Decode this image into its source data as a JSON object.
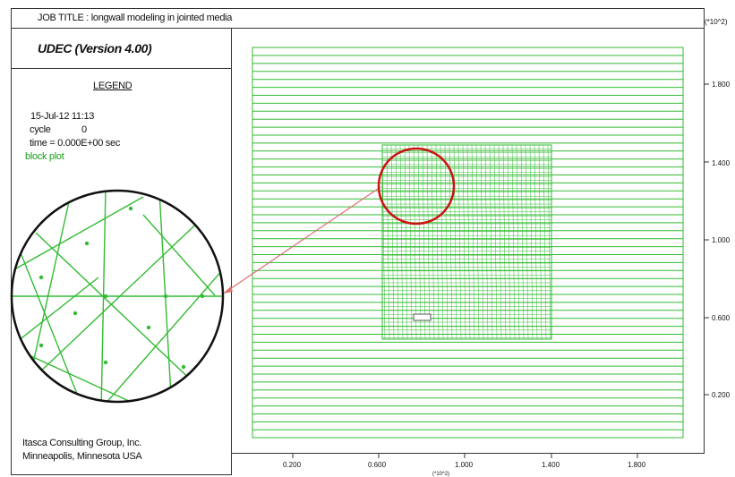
{
  "header": {
    "job_title": "JOB TITLE : longwall modeling in jointed media",
    "axis_unit": "(*10^2)"
  },
  "legend_panel": {
    "version": "UDEC (Version 4.00)",
    "legend_heading": "LEGEND",
    "datetime": "15-Jul-12 11:13",
    "cycle_label": "cycle",
    "cycle_value": "0",
    "time_label": "time = 0.000E+00 sec",
    "plot_label": "block plot",
    "org_line1": "Itasca Consulting Group, Inc.",
    "org_line2": "Minneapolis, Minnesota USA"
  },
  "axes": {
    "x_ticks": [
      "0.200",
      "0.600",
      "1.000",
      "1.400",
      "1.800"
    ],
    "y_ticks": [
      "1.800",
      "1.400",
      "1.000",
      "0.600",
      "0.200"
    ],
    "x_unit": "(*10^2)"
  },
  "colors": {
    "joint_green": "#33bb33",
    "highlight_red": "#cc1111",
    "callout_line": "#e07070",
    "frame": "#333333"
  },
  "icons": {
    "zoom_callout": "magnified-circle",
    "opening": "excavation-rectangle"
  }
}
